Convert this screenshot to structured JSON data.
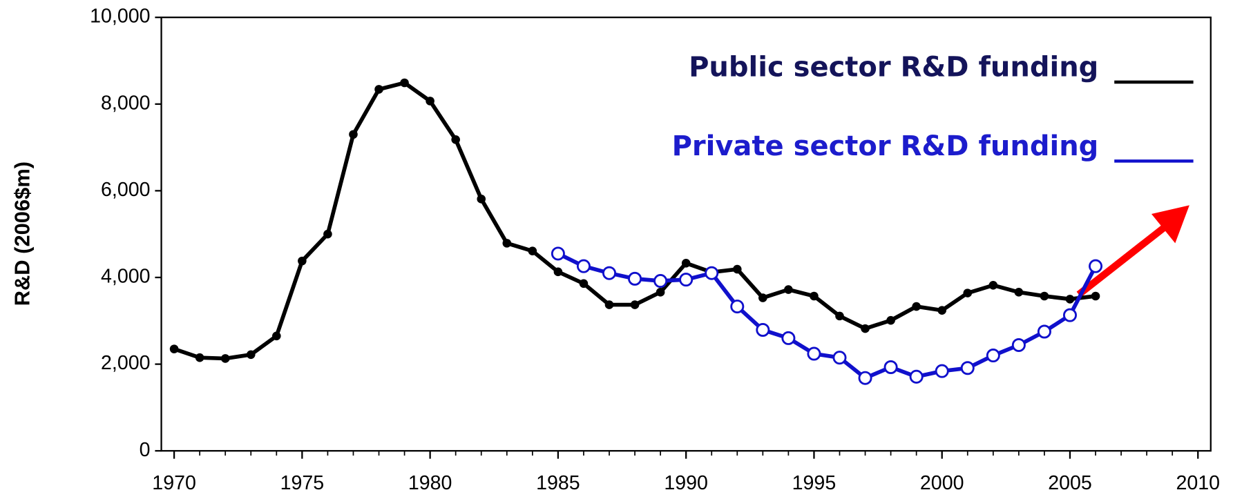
{
  "chart_data": {
    "type": "line",
    "y_label": "R&D (2006$m)",
    "x": [
      1970,
      1971,
      1972,
      1973,
      1974,
      1975,
      1976,
      1977,
      1978,
      1979,
      1980,
      1981,
      1982,
      1983,
      1984,
      1985,
      1986,
      1987,
      1988,
      1989,
      1990,
      1991,
      1992,
      1993,
      1994,
      1995,
      1996,
      1997,
      1998,
      1999,
      2000,
      2001,
      2002,
      2003,
      2004,
      2005,
      2006
    ],
    "series": [
      {
        "name": "Public  sector R&D funding",
        "color": "#000000",
        "marker": "filled",
        "values": [
          2350,
          2150,
          2130,
          2220,
          2650,
          4380,
          5000,
          7300,
          8340,
          8490,
          8070,
          7180,
          5810,
          4790,
          4610,
          4130,
          3860,
          3370,
          3370,
          3660,
          4330,
          4120,
          4190,
          3530,
          3720,
          3570,
          3110,
          2820,
          3010,
          3330,
          3240,
          3640,
          3820,
          3660,
          3570,
          3500,
          3570
        ]
      },
      {
        "name": "Private sector R&D funding",
        "color": "#1010cc",
        "marker": "open",
        "values": [
          null,
          null,
          null,
          null,
          null,
          null,
          null,
          null,
          null,
          null,
          null,
          null,
          null,
          null,
          null,
          4550,
          4260,
          4100,
          3970,
          3920,
          3950,
          4100,
          3330,
          2790,
          2600,
          2240,
          2150,
          1680,
          1930,
          1710,
          1840,
          1910,
          2200,
          2440,
          2750,
          3130,
          4260
        ]
      }
    ],
    "xlim": [
      1969.5,
      2010.5
    ],
    "xticks": [
      1970,
      1975,
      1980,
      1985,
      1990,
      1995,
      2000,
      2005,
      2010
    ],
    "ylim": [
      0,
      10000
    ],
    "yticks": [
      0,
      {
        "value": 2000,
        "label": "2,000"
      },
      {
        "value": 4000,
        "label": "4,000"
      },
      {
        "value": 6000,
        "label": "6,000"
      },
      {
        "value": 8000,
        "label": "8,000"
      },
      {
        "value": 10000,
        "label": "10,000"
      }
    ]
  }
}
